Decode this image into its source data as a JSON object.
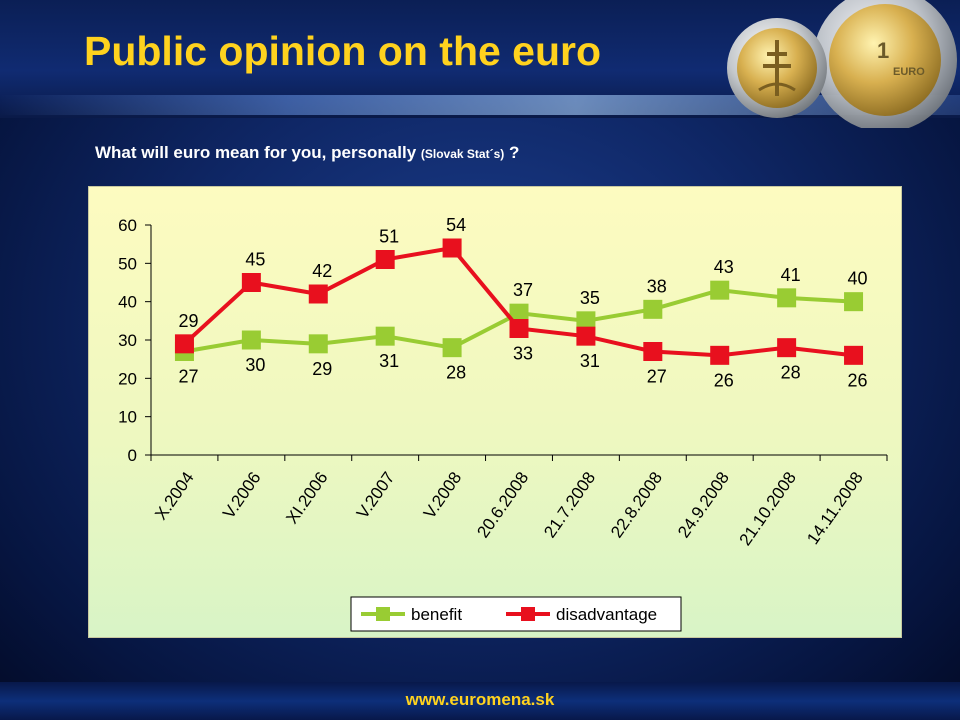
{
  "slide": {
    "title": "Public opinion on the euro",
    "subtitle_main": "What will euro mean for you, personally ",
    "subtitle_source": "(Slovak Stat´s)",
    "subtitle_end": " ?",
    "footer_url": "www.euromena.sk",
    "title_color": "#ffd21e",
    "footer_color": "#ffd21e"
  },
  "chart_data": {
    "type": "line",
    "title": "",
    "xlabel": "",
    "ylabel": "",
    "ylim": [
      0,
      60
    ],
    "yticks": [
      0,
      10,
      20,
      30,
      40,
      50,
      60
    ],
    "grid": false,
    "legend_position": "bottom-right",
    "categories": [
      "X.2004",
      "V.2006",
      "XI.2006",
      "V.2007",
      "V.2008",
      "20.6.2008",
      "21.7.2008",
      "22.8.2008",
      "24.9.2008",
      "21.10.2008",
      "14.11.2008"
    ],
    "series": [
      {
        "name": "benefit",
        "color": "#99cc33",
        "values": [
          27,
          30,
          29,
          31,
          28,
          37,
          35,
          38,
          43,
          41,
          40
        ]
      },
      {
        "name": "disadvantage",
        "color": "#e8101e",
        "values": [
          29,
          45,
          42,
          51,
          54,
          33,
          31,
          27,
          26,
          28,
          26
        ]
      }
    ]
  }
}
